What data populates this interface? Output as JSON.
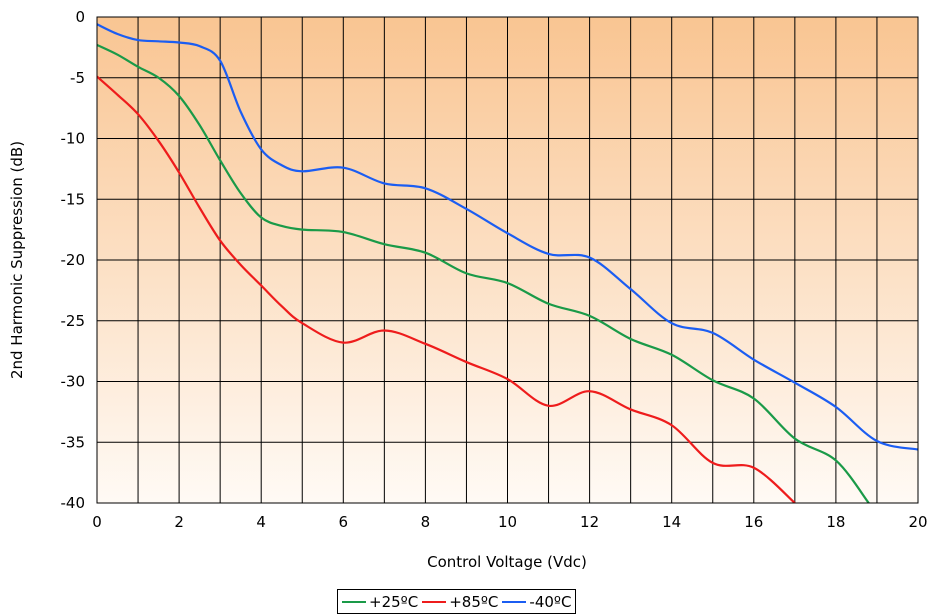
{
  "chart_data": {
    "type": "line",
    "xlabel": "Control Voltage (Vdc)",
    "ylabel": "2nd Harmonic Suppression (dB)",
    "xlim": [
      0,
      20
    ],
    "ylim": [
      -40,
      0
    ],
    "x_ticks": [
      "0",
      "2",
      "4",
      "6",
      "8",
      "10",
      "12",
      "14",
      "16",
      "18",
      "20"
    ],
    "y_ticks": [
      "0",
      "-5",
      "-10",
      "-15",
      "-20",
      "-25",
      "-30",
      "-35",
      "-40"
    ],
    "grid": {
      "vertical_every": 1,
      "horizontal_every": 5
    },
    "background": {
      "top_color": "#f9c592",
      "bottom_color": "#fffaf5"
    },
    "legend_position": "bottom-center",
    "series": [
      {
        "name": "+25ºC",
        "color": "#1a9a48",
        "x": [
          0,
          0.5,
          1,
          1.5,
          2,
          2.5,
          3,
          3.5,
          4,
          4.5,
          5,
          6,
          7,
          8,
          9,
          10,
          11,
          12,
          13,
          14,
          15,
          16,
          17,
          18,
          18.8
        ],
        "y": [
          -2.3,
          -3.1,
          -4.1,
          -5.0,
          -6.5,
          -8.9,
          -11.8,
          -14.5,
          -16.5,
          -17.2,
          -17.5,
          -17.7,
          -18.7,
          -19.4,
          -21.1,
          -21.9,
          -23.6,
          -24.6,
          -26.5,
          -27.8,
          -29.9,
          -31.4,
          -34.7,
          -36.5,
          -40.0
        ]
      },
      {
        "name": "+85ºC",
        "color": "#ee1c1c",
        "x": [
          0,
          0.5,
          1,
          1.5,
          2,
          2.5,
          3,
          3.5,
          4,
          4.5,
          5,
          6,
          7,
          8,
          9,
          10,
          11,
          12,
          13,
          14,
          15,
          16,
          17
        ],
        "y": [
          -4.9,
          -6.4,
          -8.0,
          -10.2,
          -12.8,
          -15.7,
          -18.4,
          -20.4,
          -22.1,
          -23.8,
          -25.2,
          -26.8,
          -25.8,
          -26.9,
          -28.4,
          -29.8,
          -32.0,
          -30.8,
          -32.3,
          -33.6,
          -36.7,
          -37.1,
          -40.0
        ]
      },
      {
        "name": "-40ºC",
        "color": "#1b5df2",
        "x": [
          0,
          0.5,
          1,
          1.5,
          2,
          2.5,
          3,
          3.5,
          4,
          4.5,
          5,
          6,
          7,
          8,
          9,
          10,
          11,
          12,
          13,
          14,
          15,
          16,
          17,
          18,
          19,
          20
        ],
        "y": [
          -0.6,
          -1.4,
          -1.9,
          -2.0,
          -2.1,
          -2.4,
          -3.6,
          -7.8,
          -10.9,
          -12.2,
          -12.7,
          -12.4,
          -13.7,
          -14.1,
          -15.8,
          -17.8,
          -19.5,
          -19.8,
          -22.4,
          -25.2,
          -26.0,
          -28.2,
          -30.1,
          -32.1,
          -34.9,
          -35.6
        ]
      }
    ]
  }
}
